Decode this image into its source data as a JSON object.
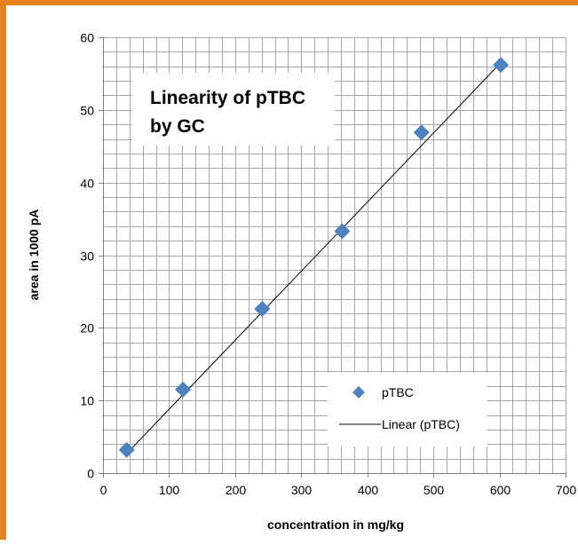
{
  "chart_data": {
    "type": "scatter",
    "title_lines": [
      "Linearity of pTBC",
      "by GC"
    ],
    "xlabel": "concentration in mg/kg",
    "ylabel": "area in 1000 pA",
    "xlim": [
      0,
      700
    ],
    "ylim": [
      0,
      60
    ],
    "x_major_ticks": [
      0,
      100,
      200,
      300,
      400,
      500,
      600,
      700
    ],
    "y_major_ticks": [
      0,
      10,
      20,
      30,
      40,
      50,
      60
    ],
    "x_minor_step": 20,
    "y_minor_step": 2,
    "grid": true,
    "legend_position": "bottom-right",
    "series": [
      {
        "name": "pTBC",
        "kind": "scatter",
        "marker": "diamond",
        "color": "#4f81bd",
        "x": [
          36,
          121,
          241,
          362,
          482,
          602
        ],
        "y": [
          3.2,
          11.5,
          22.6,
          33.3,
          46.9,
          56.2
        ]
      },
      {
        "name": "Linear (pTBC)",
        "kind": "line",
        "color": "#000000",
        "x": [
          36,
          602
        ],
        "y": [
          2.7,
          56.5
        ]
      }
    ]
  },
  "colors": {
    "frame": "#e8801e",
    "grid": "#a6a6a6",
    "marker": "#4f81bd"
  }
}
